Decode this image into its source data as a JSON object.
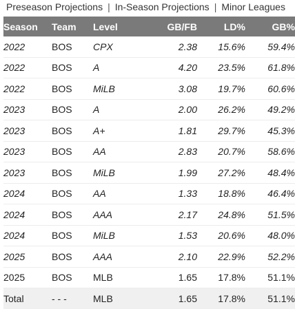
{
  "tabs": [
    "Preseason Projections",
    "In-Season Projections",
    "Minor Leagues"
  ],
  "separator": "|",
  "headers": {
    "season": "Season",
    "team": "Team",
    "level": "Level",
    "gbfb": "GB/FB",
    "ld": "LD%",
    "gb": "GB%"
  },
  "rows": [
    {
      "season": "2022",
      "team": "BOS",
      "level": "CPX",
      "gbfb": "2.38",
      "ld": "15.6%",
      "gb": "59.4%",
      "minor": true
    },
    {
      "season": "2022",
      "team": "BOS",
      "level": "A",
      "gbfb": "4.20",
      "ld": "23.5%",
      "gb": "61.8%",
      "minor": true
    },
    {
      "season": "2022",
      "team": "BOS",
      "level": "MiLB",
      "gbfb": "3.08",
      "ld": "19.7%",
      "gb": "60.6%",
      "minor": true
    },
    {
      "season": "2023",
      "team": "BOS",
      "level": "A",
      "gbfb": "2.00",
      "ld": "26.2%",
      "gb": "49.2%",
      "minor": true
    },
    {
      "season": "2023",
      "team": "BOS",
      "level": "A+",
      "gbfb": "1.81",
      "ld": "29.7%",
      "gb": "45.3%",
      "minor": true
    },
    {
      "season": "2023",
      "team": "BOS",
      "level": "AA",
      "gbfb": "2.83",
      "ld": "20.7%",
      "gb": "58.6%",
      "minor": true
    },
    {
      "season": "2023",
      "team": "BOS",
      "level": "MiLB",
      "gbfb": "1.99",
      "ld": "27.2%",
      "gb": "48.4%",
      "minor": true
    },
    {
      "season": "2024",
      "team": "BOS",
      "level": "AA",
      "gbfb": "1.33",
      "ld": "18.8%",
      "gb": "46.4%",
      "minor": true
    },
    {
      "season": "2024",
      "team": "BOS",
      "level": "AAA",
      "gbfb": "2.17",
      "ld": "24.8%",
      "gb": "51.5%",
      "minor": true
    },
    {
      "season": "2024",
      "team": "BOS",
      "level": "MiLB",
      "gbfb": "1.53",
      "ld": "20.6%",
      "gb": "48.0%",
      "minor": true
    },
    {
      "season": "2025",
      "team": "BOS",
      "level": "AAA",
      "gbfb": "2.10",
      "ld": "22.9%",
      "gb": "52.2%",
      "minor": true
    },
    {
      "season": "2025",
      "team": "BOS",
      "level": "MLB",
      "gbfb": "1.65",
      "ld": "17.8%",
      "gb": "51.1%",
      "minor": false
    }
  ],
  "total": {
    "season": "Total",
    "team": "- - -",
    "level": "MLB",
    "gbfb": "1.65",
    "ld": "17.8%",
    "gb": "51.1%"
  },
  "colors": {
    "header_bg": "#7a7a7a",
    "header_text": "#ffffff",
    "total_bg": "#f0f0f0"
  }
}
